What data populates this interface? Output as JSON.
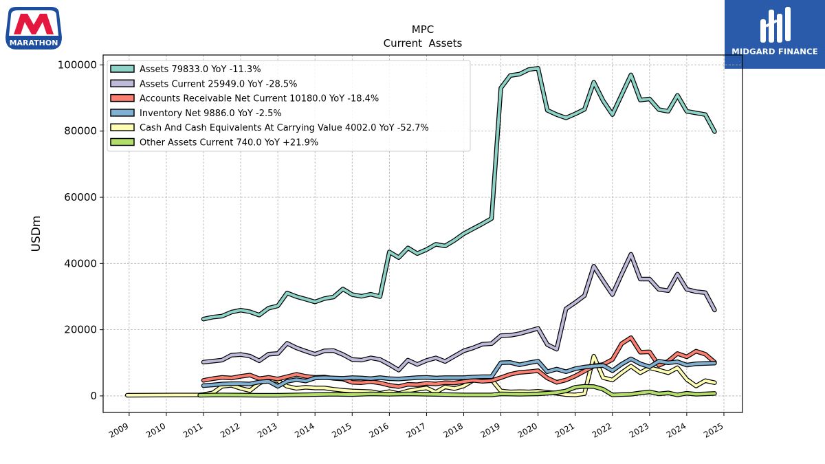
{
  "logos": {
    "left_text": "MARATHON",
    "right_text": "MIDGARD FINANCE"
  },
  "colors": {
    "marathon_red": "#e4173e",
    "marathon_blue": "#1d4e9e",
    "midgard_bg": "#2a5bab"
  },
  "chart_data": {
    "type": "line",
    "title": "MPC",
    "subtitle": "Current  Assets",
    "xlabel": "",
    "ylabel": "USDm",
    "xlim": [
      2008.3,
      2025.5
    ],
    "ylim": [
      -5000,
      103000
    ],
    "grid": true,
    "legend_position": "top-left",
    "x_ticks": [
      "2009",
      "2010",
      "2011",
      "2012",
      "2013",
      "2014",
      "2015",
      "2016",
      "2017",
      "2018",
      "2019",
      "2020",
      "2021",
      "2022",
      "2023",
      "2024",
      "2025"
    ],
    "y_ticks": [
      "0",
      "20000",
      "40000",
      "60000",
      "80000",
      "100000"
    ],
    "series": [
      {
        "name": "Cash And Cash Equivalents At Carrying Value",
        "legend": "Cash And Cash Equivalents At Carrying Value  4002.0 YoY -52.7%",
        "color": "#ffffb3",
        "x": [
          2008.95,
          2010.9,
          2011.0,
          2011.25,
          2011.5,
          2011.75,
          2012.0,
          2012.25,
          2012.5,
          2012.75,
          2013.0,
          2013.25,
          2013.5,
          2013.75,
          2014.0,
          2014.25,
          2014.5,
          2014.75,
          2015.0,
          2015.25,
          2015.5,
          2015.75,
          2016.0,
          2016.25,
          2016.5,
          2016.75,
          2017.0,
          2017.25,
          2017.5,
          2017.75,
          2018.0,
          2018.25,
          2018.5,
          2018.75,
          2019.0,
          2019.25,
          2019.5,
          2019.75,
          2020.0,
          2020.25,
          2020.5,
          2020.75,
          2021.0,
          2021.25,
          2021.5,
          2021.75,
          2022.0,
          2022.25,
          2022.5,
          2022.75,
          2023.0,
          2023.25,
          2023.5,
          2023.75,
          2024.0,
          2024.25,
          2024.5,
          2024.75
        ],
        "y": [
          200,
          300,
          400,
          900,
          2900,
          3200,
          2300,
          1600,
          3800,
          5100,
          4600,
          2900,
          2300,
          2600,
          2400,
          2400,
          2000,
          1700,
          1500,
          1400,
          1300,
          800,
          1300,
          700,
          1500,
          2000,
          2400,
          1100,
          2700,
          2200,
          3000,
          4700,
          4800,
          4900,
          1500,
          1200,
          1300,
          1200,
          1400,
          1100,
          800,
          400,
          300,
          700,
          12000,
          5500,
          4800,
          7000,
          9000,
          7000,
          8500,
          7800,
          7000,
          8500,
          5000,
          3000,
          4600,
          4002
        ]
      },
      {
        "name": "Accounts Receivable Net Current",
        "legend": "Accounts Receivable Net Current  10180.0 YoY -18.4%",
        "color": "#fb8072",
        "x": [
          2011.0,
          2011.25,
          2011.5,
          2011.75,
          2012.0,
          2012.25,
          2012.5,
          2012.75,
          2013.0,
          2013.25,
          2013.5,
          2013.75,
          2014.0,
          2014.25,
          2014.5,
          2014.75,
          2015.0,
          2015.25,
          2015.5,
          2015.75,
          2016.0,
          2016.25,
          2016.5,
          2016.75,
          2017.0,
          2017.25,
          2017.5,
          2017.75,
          2018.0,
          2018.25,
          2018.5,
          2018.75,
          2019.0,
          2019.25,
          2019.5,
          2019.75,
          2020.0,
          2020.25,
          2020.5,
          2020.75,
          2021.0,
          2021.25,
          2021.5,
          2021.75,
          2022.0,
          2022.25,
          2022.5,
          2022.75,
          2023.0,
          2023.25,
          2023.5,
          2023.75,
          2024.0,
          2024.25,
          2024.5,
          2024.75
        ],
        "y": [
          4700,
          5200,
          5600,
          5400,
          5900,
          6300,
          5200,
          5600,
          5100,
          5800,
          6500,
          5900,
          5600,
          5700,
          5300,
          5100,
          4100,
          4000,
          4300,
          3900,
          3200,
          2800,
          3500,
          3400,
          3800,
          3600,
          4000,
          3900,
          4300,
          4700,
          4400,
          4600,
          5500,
          6500,
          7100,
          7300,
          7600,
          5400,
          4100,
          4800,
          6000,
          7500,
          9000,
          9500,
          11000,
          15800,
          17600,
          13200,
          13300,
          9200,
          10500,
          12800,
          11800,
          13500,
          12600,
          10180
        ]
      },
      {
        "name": "Inventory Net",
        "legend": "Inventory Net  9886.0 YoY -2.5%",
        "color": "#80b1d3",
        "x": [
          2011.0,
          2011.25,
          2011.5,
          2011.75,
          2012.0,
          2012.25,
          2012.5,
          2012.75,
          2013.0,
          2013.25,
          2013.5,
          2013.75,
          2014.0,
          2014.25,
          2014.5,
          2014.75,
          2015.0,
          2015.25,
          2015.5,
          2015.75,
          2016.0,
          2016.25,
          2016.5,
          2016.75,
          2017.0,
          2017.25,
          2017.5,
          2017.75,
          2018.0,
          2018.25,
          2018.5,
          2018.75,
          2019.0,
          2019.25,
          2019.5,
          2019.75,
          2020.0,
          2020.25,
          2020.5,
          2020.75,
          2021.0,
          2021.25,
          2021.5,
          2021.75,
          2022.0,
          2022.25,
          2022.5,
          2022.75,
          2023.0,
          2023.25,
          2023.5,
          2023.75,
          2024.0,
          2024.25,
          2024.5,
          2024.75
        ],
        "y": [
          3100,
          3300,
          3600,
          3700,
          3700,
          3600,
          4200,
          4400,
          2900,
          4400,
          4900,
          4500,
          5400,
          5500,
          5400,
          5300,
          5500,
          5400,
          5200,
          5500,
          5200,
          5100,
          5300,
          5500,
          5600,
          5400,
          5500,
          5500,
          5500,
          5700,
          5800,
          5800,
          10000,
          10100,
          9400,
          10000,
          10500,
          7300,
          8100,
          7300,
          8200,
          8700,
          9000,
          9200,
          7600,
          9600,
          11200,
          9700,
          8800,
          10500,
          10000,
          10300,
          9300,
          9700,
          9800,
          9886
        ]
      },
      {
        "name": "Other Assets Current",
        "legend": "Other Assets Current  740.0 YoY +21.9%",
        "color": "#b3de69",
        "x": [
          2010.9,
          2011.5,
          2012.0,
          2012.5,
          2013.0,
          2013.5,
          2014.0,
          2014.5,
          2015.0,
          2015.5,
          2016.0,
          2016.5,
          2017.0,
          2017.5,
          2018.0,
          2018.5,
          2018.75,
          2019.0,
          2019.5,
          2020.0,
          2020.5,
          2020.75,
          2021.0,
          2021.25,
          2021.5,
          2021.75,
          2022.0,
          2022.5,
          2022.75,
          2023.0,
          2023.25,
          2023.5,
          2023.75,
          2024.0,
          2024.25,
          2024.5,
          2024.75
        ],
        "y": [
          200,
          300,
          250,
          200,
          200,
          300,
          400,
          500,
          400,
          600,
          500,
          600,
          500,
          400,
          300,
          300,
          300,
          600,
          500,
          600,
          1000,
          1500,
          2600,
          2900,
          2800,
          2000,
          300,
          500,
          900,
          1200,
          600,
          900,
          300,
          800,
          500,
          600,
          740
        ]
      },
      {
        "name": "Assets Current",
        "legend": "Assets Current  25949.0 YoY -28.5%",
        "color": "#bebada",
        "x": [
          2011.0,
          2011.25,
          2011.5,
          2011.75,
          2012.0,
          2012.25,
          2012.5,
          2012.75,
          2013.0,
          2013.25,
          2013.5,
          2013.75,
          2014.0,
          2014.25,
          2014.5,
          2014.75,
          2015.0,
          2015.25,
          2015.5,
          2015.75,
          2016.0,
          2016.25,
          2016.5,
          2016.75,
          2017.0,
          2017.25,
          2017.5,
          2017.75,
          2018.0,
          2018.25,
          2018.5,
          2018.75,
          2019.0,
          2019.25,
          2019.5,
          2019.75,
          2020.0,
          2020.25,
          2020.5,
          2020.75,
          2021.0,
          2021.25,
          2021.5,
          2021.75,
          2022.0,
          2022.25,
          2022.5,
          2022.75,
          2023.0,
          2023.25,
          2023.5,
          2023.75,
          2024.0,
          2024.25,
          2024.5,
          2024.75
        ],
        "y": [
          10200,
          10500,
          10800,
          12300,
          12500,
          12000,
          10600,
          12600,
          12800,
          15900,
          14500,
          13500,
          12600,
          13600,
          13700,
          12500,
          11000,
          10800,
          11500,
          11000,
          9500,
          7800,
          10800,
          9500,
          10700,
          11500,
          10400,
          12000,
          13600,
          14500,
          15600,
          15800,
          18200,
          18300,
          18800,
          19600,
          20400,
          15500,
          14100,
          26300,
          28200,
          30300,
          39200,
          34800,
          30600,
          36800,
          42800,
          35300,
          35300,
          32200,
          31800,
          36800,
          32200,
          31500,
          31200,
          25949
        ]
      },
      {
        "name": "Assets",
        "legend": "Assets  79833.0 YoY -11.3%",
        "color": "#8dd3c7",
        "x": [
          2011.0,
          2011.25,
          2011.5,
          2011.75,
          2012.0,
          2012.25,
          2012.5,
          2012.75,
          2013.0,
          2013.25,
          2013.5,
          2013.75,
          2014.0,
          2014.25,
          2014.5,
          2014.75,
          2015.0,
          2015.25,
          2015.5,
          2015.75,
          2016.0,
          2016.25,
          2016.5,
          2016.75,
          2017.0,
          2017.25,
          2017.5,
          2017.75,
          2018.0,
          2018.25,
          2018.5,
          2018.75,
          2019.0,
          2019.25,
          2019.5,
          2019.75,
          2020.0,
          2020.25,
          2020.5,
          2020.75,
          2021.0,
          2021.25,
          2021.5,
          2021.75,
          2022.0,
          2022.25,
          2022.5,
          2022.75,
          2023.0,
          2023.25,
          2023.5,
          2023.75,
          2024.0,
          2024.25,
          2024.5,
          2024.75
        ],
        "y": [
          23200,
          23800,
          24100,
          25300,
          25900,
          25400,
          24400,
          26500,
          27200,
          31100,
          30000,
          29200,
          28400,
          29400,
          29900,
          32300,
          30600,
          30100,
          30700,
          30000,
          43500,
          41800,
          44700,
          43000,
          44200,
          45800,
          45300,
          47000,
          49000,
          50500,
          52000,
          53600,
          93000,
          96800,
          97200,
          98600,
          99000,
          86300,
          85000,
          84000,
          85200,
          86600,
          94800,
          89200,
          85000,
          91000,
          97000,
          89400,
          89700,
          86500,
          86000,
          90800,
          86000,
          85500,
          85000,
          79833
        ]
      }
    ]
  }
}
